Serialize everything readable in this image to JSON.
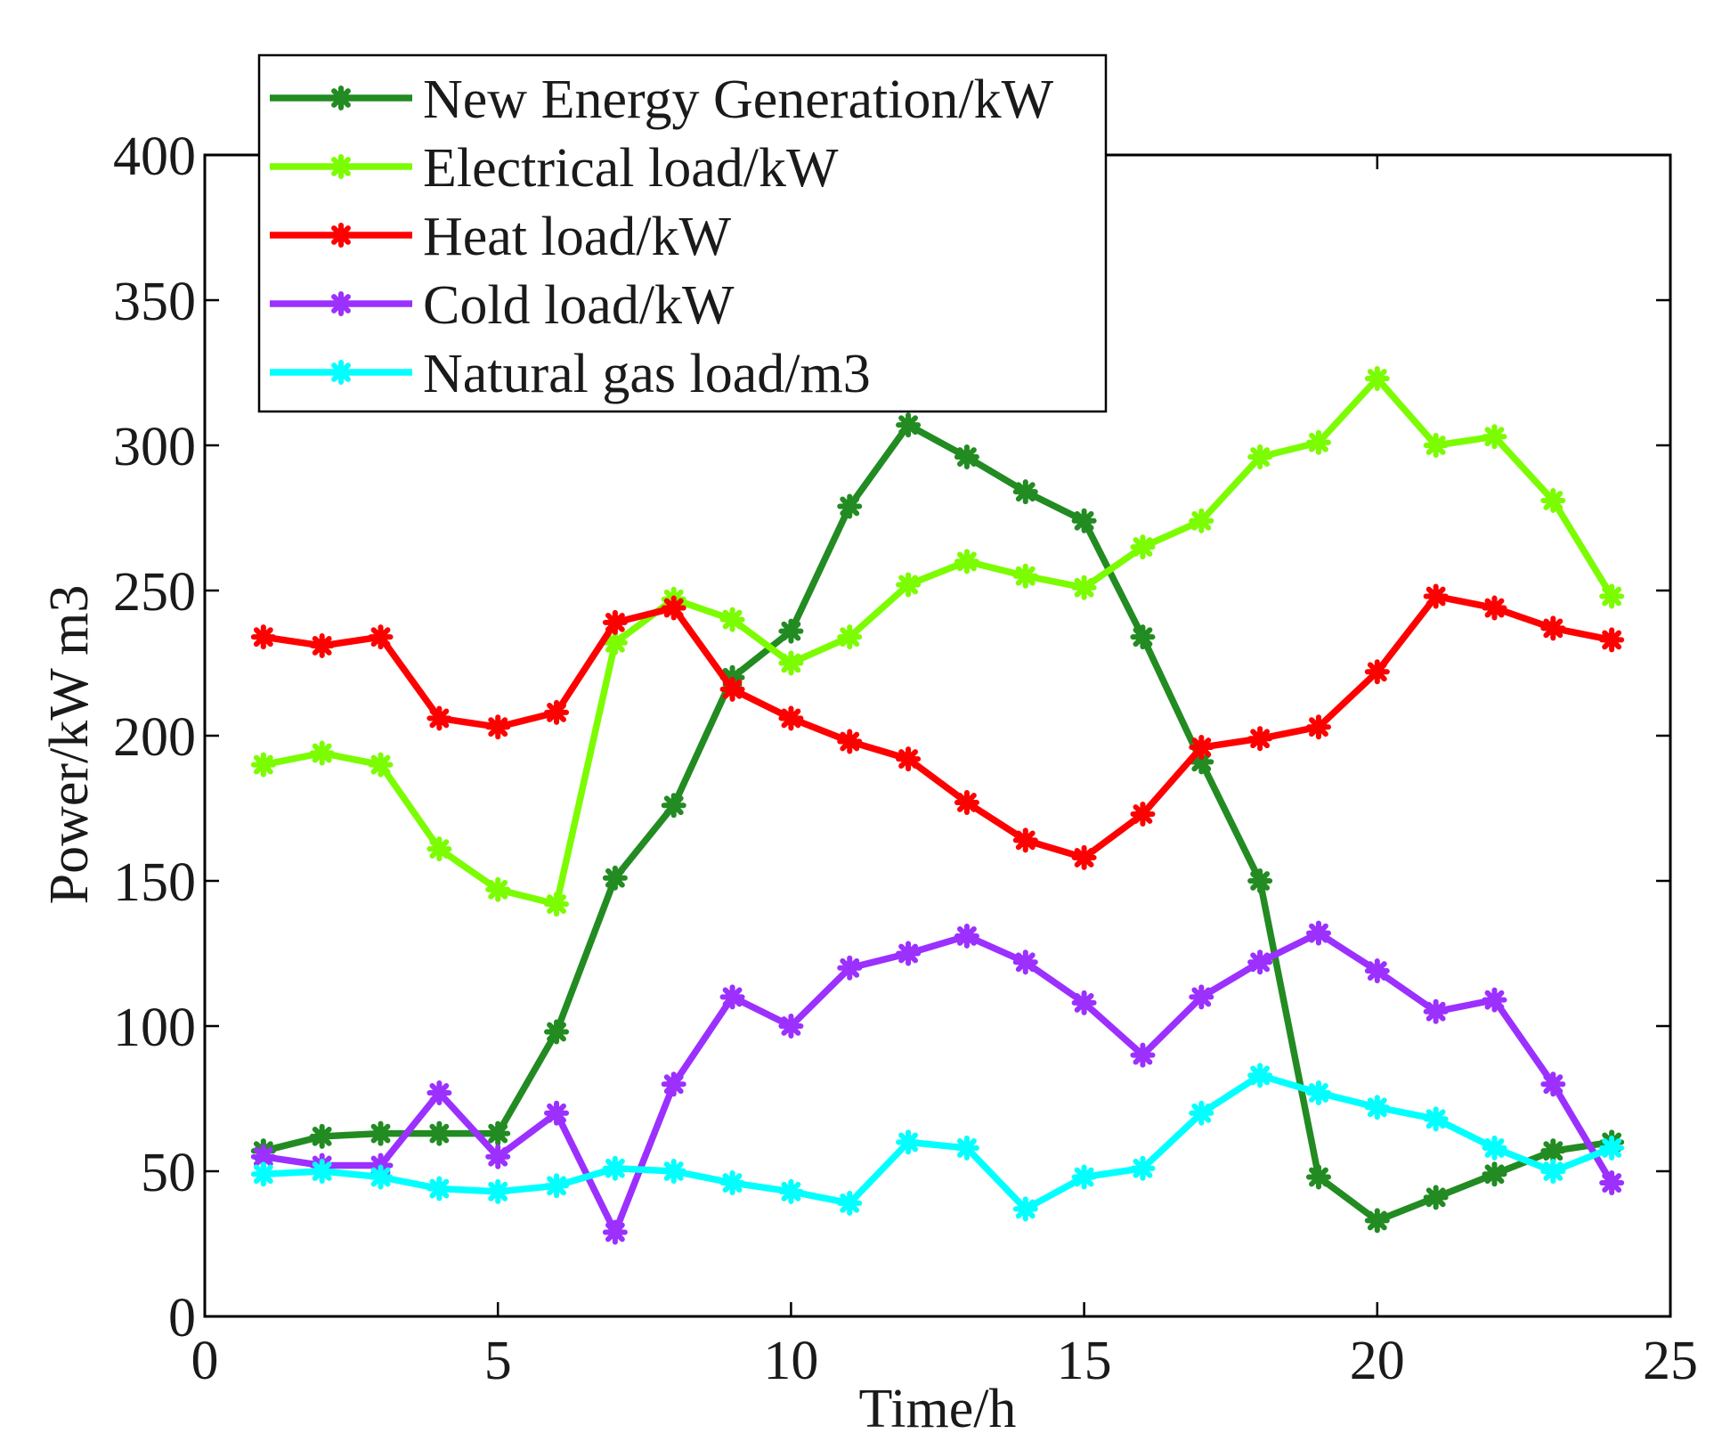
{
  "chart_data": {
    "type": "line",
    "title": "",
    "xlabel": "Time/h",
    "ylabel": "Power/kW m3",
    "xlim": [
      0,
      25
    ],
    "ylim": [
      0,
      400
    ],
    "xticks": [
      0,
      5,
      10,
      15,
      20,
      25
    ],
    "yticks": [
      0,
      50,
      100,
      150,
      200,
      250,
      300,
      350,
      400
    ],
    "xtick_labels": [
      "0",
      "5",
      "10",
      "15",
      "20",
      "25"
    ],
    "ytick_labels": [
      "0",
      "50",
      "100",
      "150",
      "200",
      "250",
      "300",
      "350",
      "400"
    ],
    "grid": false,
    "legend_position": "top-left",
    "x": [
      1,
      2,
      3,
      4,
      5,
      6,
      7,
      8,
      9,
      10,
      11,
      12,
      13,
      14,
      15,
      16,
      17,
      18,
      19,
      20,
      21,
      22,
      23,
      24
    ],
    "series": [
      {
        "name": "New Energy Generation/kW",
        "color": "#228B22",
        "values": [
          57,
          62,
          63,
          63,
          63,
          98,
          151,
          176,
          220,
          236,
          279,
          307,
          296,
          284,
          274,
          234,
          191,
          150,
          48,
          33,
          41,
          49,
          57,
          60
        ]
      },
      {
        "name": "Electrical load/kW",
        "color": "#7CFC00",
        "values": [
          190,
          194,
          190,
          161,
          147,
          142,
          232,
          247,
          240,
          225,
          234,
          252,
          260,
          255,
          251,
          265,
          274,
          296,
          301,
          323,
          300,
          303,
          281,
          248
        ]
      },
      {
        "name": "Heat load/kW",
        "color": "#FF0000",
        "values": [
          234,
          231,
          234,
          206,
          203,
          208,
          239,
          244,
          216,
          206,
          198,
          192,
          177,
          164,
          158,
          173,
          196,
          199,
          203,
          222,
          248,
          244,
          237,
          233
        ]
      },
      {
        "name": "Cold load/kW",
        "color": "#9B30FF",
        "values": [
          55,
          52,
          52,
          77,
          55,
          70,
          29,
          80,
          110,
          100,
          120,
          125,
          131,
          122,
          108,
          90,
          110,
          122,
          132,
          119,
          105,
          109,
          80,
          46
        ]
      },
      {
        "name": "Natural gas load/m3",
        "color": "#00FFFF",
        "values": [
          49,
          50,
          48,
          44,
          43,
          45,
          51,
          50,
          46,
          43,
          39,
          60,
          58,
          37,
          48,
          51,
          70,
          83,
          77,
          72,
          68,
          58,
          50,
          58
        ]
      }
    ]
  }
}
